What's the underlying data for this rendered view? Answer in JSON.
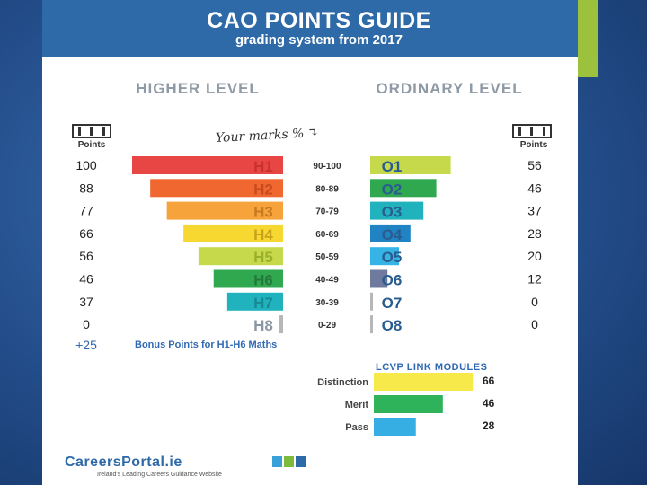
{
  "header": {
    "title": "CAO POINTS GUIDE",
    "subtitle": "grading system from 2017"
  },
  "higher_level_title": "HIGHER LEVEL",
  "ordinary_level_title": "ORDINARY LEVEL",
  "points_label": "Points",
  "marks_note": "Your marks % ↴",
  "bonus": {
    "points": "+25",
    "label": "Bonus Points for H1-H6 Maths"
  },
  "lcvp": {
    "title": "LCVP LINK MODULES"
  },
  "logo": {
    "name": "CareersPortal.ie",
    "tagline": "Ireland's Leading Careers Guidance Website"
  },
  "colors": {
    "header_bg": "#2e6aa7",
    "accent": "#9cc23d",
    "bonus_text": "#2f69b2"
  },
  "chart_data": [
    {
      "type": "bar",
      "title": "HIGHER LEVEL",
      "categories": [
        "H1",
        "H2",
        "H3",
        "H4",
        "H5",
        "H6",
        "H7",
        "H8"
      ],
      "mark_ranges": [
        "90-100",
        "80-89",
        "70-79",
        "60-69",
        "50-59",
        "40-49",
        "30-39",
        "0-29"
      ],
      "values": [
        100,
        88,
        77,
        66,
        56,
        46,
        37,
        0
      ],
      "colors": [
        "#e84545",
        "#f0672f",
        "#f7a33c",
        "#f7d831",
        "#c6d94a",
        "#2fa84f",
        "#21b3bd",
        "#b7b7b7"
      ]
    },
    {
      "type": "bar",
      "title": "ORDINARY LEVEL",
      "categories": [
        "O1",
        "O2",
        "O3",
        "O4",
        "O5",
        "O6",
        "O7",
        "O8"
      ],
      "values": [
        56,
        46,
        37,
        28,
        20,
        12,
        0,
        0
      ],
      "colors": [
        "#c6d94a",
        "#2fa84f",
        "#21b3bd",
        "#1f83c4",
        "#37b4e6",
        "#6f7a9e",
        "#b7b7b7",
        "#b7b7b7"
      ]
    },
    {
      "type": "bar",
      "title": "LCVP LINK MODULES",
      "categories": [
        "Distinction",
        "Merit",
        "Pass"
      ],
      "values": [
        66,
        46,
        28
      ],
      "colors": [
        "#f7e94a",
        "#2fb35a",
        "#37aee3"
      ]
    }
  ]
}
